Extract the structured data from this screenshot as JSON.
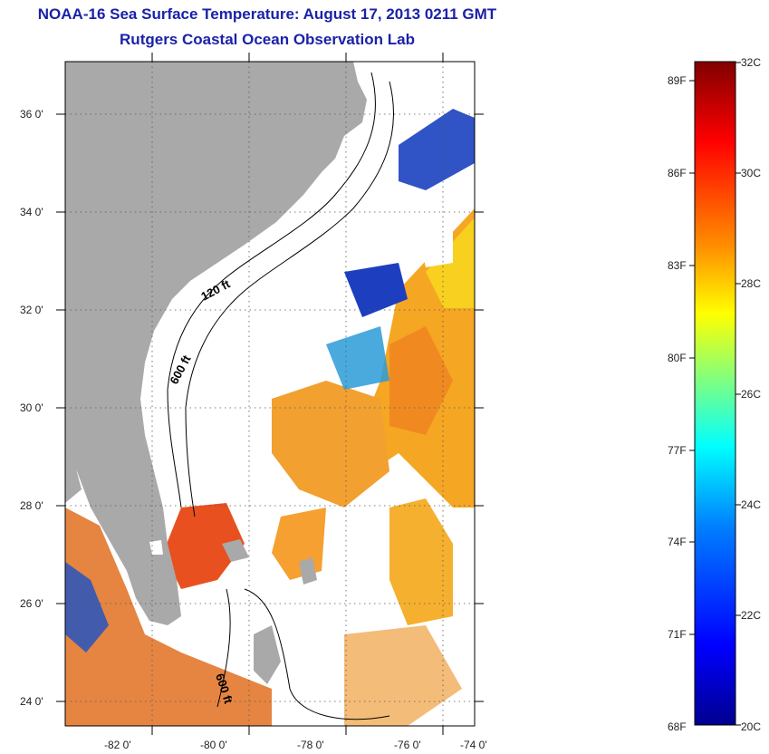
{
  "header": {
    "title": "NOAA-16 Sea Surface Temperature:  August 17, 2013 0211 GMT",
    "subtitle": "Rutgers Coastal Ocean Observation Lab"
  },
  "map": {
    "lon_ticks": [
      "-82 0'",
      "-80 0'",
      "-78 0'",
      "-76 0'",
      "-74 0'"
    ],
    "lat_ticks": [
      "36 0'",
      "34 0'",
      "32 0'",
      "30 0'",
      "28 0'",
      "26 0'",
      "24 0'"
    ],
    "contours": [
      "120 ft",
      "600 ft",
      "600 ft"
    ],
    "colors": {
      "land": "#a9a9a9",
      "cloud": "#ffffff"
    }
  },
  "colorbar": {
    "fahrenheit_labels": [
      "89F",
      "86F",
      "83F",
      "80F",
      "77F",
      "74F",
      "71F",
      "68F"
    ],
    "celsius_labels": [
      "32C",
      "30C",
      "28C",
      "26C",
      "24C",
      "22C",
      "20C"
    ],
    "range_c": [
      20,
      32
    ],
    "gradient": [
      "#00008f",
      "#0000ff",
      "#0080ff",
      "#00ffff",
      "#80ff80",
      "#ffff00",
      "#ff8000",
      "#ff0000",
      "#800000"
    ]
  }
}
